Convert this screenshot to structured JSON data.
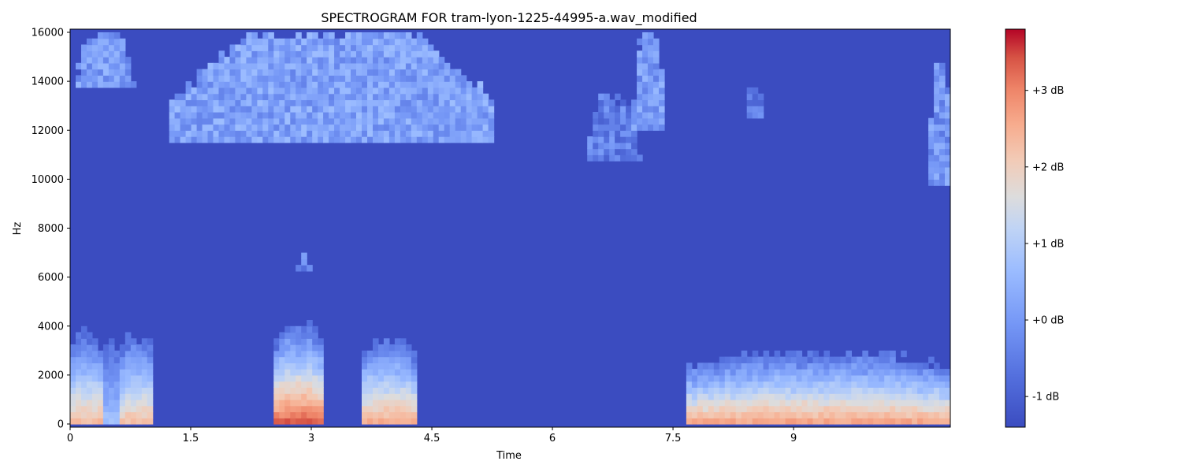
{
  "chart_data": {
    "type": "heatmap",
    "title": "SPECTROGRAM FOR tram-lyon-1225-44995-a.wav_modified",
    "xlabel": "Time",
    "ylabel": "Hz",
    "xlim": [
      0,
      10.95
    ],
    "ylim": [
      0,
      16000
    ],
    "x_ticks": [
      0,
      1.5,
      3,
      4.5,
      6,
      7.5,
      9
    ],
    "x_tick_labels": [
      "0",
      "1.5",
      "3",
      "4.5",
      "6",
      "7.5",
      "9"
    ],
    "y_ticks": [
      0,
      2000,
      4000,
      6000,
      8000,
      10000,
      12000,
      14000,
      16000
    ],
    "y_tick_labels": [
      "0",
      "2000",
      "4000",
      "6000",
      "8000",
      "10000",
      "12000",
      "14000",
      "16000"
    ],
    "colorbar": {
      "colormap": "coolwarm",
      "range_db": [
        -1.4,
        3.8
      ],
      "ticks": [
        -1,
        0,
        1,
        2,
        3
      ],
      "tick_labels": [
        "-1 dB",
        "+0 dB",
        "+1 dB",
        "+2 dB",
        "+3 dB"
      ]
    },
    "background_db": -1.3,
    "events": [
      {
        "name": "low-band-burst-1",
        "t_start": 0.0,
        "t_end": 0.42,
        "f_max": 3700,
        "peak_db": 2.6
      },
      {
        "name": "low-band-burst-1b",
        "t_start": 0.42,
        "t_end": 0.62,
        "f_max": 3400,
        "peak_db": 1.0
      },
      {
        "name": "low-band-burst-2",
        "t_start": 0.62,
        "t_end": 1.05,
        "f_max": 3600,
        "peak_db": 2.5
      },
      {
        "name": "low-band-burst-3",
        "t_start": 2.55,
        "t_end": 3.15,
        "f_max": 4000,
        "peak_db": 3.6
      },
      {
        "name": "low-band-burst-4",
        "t_start": 3.6,
        "t_end": 4.3,
        "f_max": 3500,
        "peak_db": 2.8
      },
      {
        "name": "low-band-sustained",
        "t_start": 7.65,
        "t_end": 10.95,
        "f_max": 2900,
        "peak_db": 2.9
      },
      {
        "name": "mid-band-blip",
        "t_start": 2.82,
        "t_end": 3.0,
        "f_min": 6200,
        "f_max": 7200,
        "peak_db": 0.3
      },
      {
        "name": "high-band-noise-1",
        "t_start": 0.0,
        "t_end": 0.85,
        "f_min": 13800,
        "f_max": 16000,
        "peak_db": 0.6
      },
      {
        "name": "high-band-noise-2",
        "t_start": 1.2,
        "t_end": 5.3,
        "f_min": 11400,
        "f_max": 16000,
        "peak_db": 0.7
      },
      {
        "name": "high-band-noise-3",
        "t_start": 6.4,
        "t_end": 7.1,
        "f_min": 10800,
        "f_max": 13200,
        "peak_db": 0.1
      },
      {
        "name": "high-band-noise-4",
        "t_start": 7.0,
        "t_end": 7.4,
        "f_min": 12000,
        "f_max": 16000,
        "peak_db": 0.6
      },
      {
        "name": "high-band-noise-5",
        "t_start": 8.35,
        "t_end": 8.65,
        "f_min": 12600,
        "f_max": 13800,
        "peak_db": 0.0
      },
      {
        "name": "high-band-noise-6",
        "t_start": 10.7,
        "t_end": 10.95,
        "f_min": 9800,
        "f_max": 14800,
        "peak_db": 0.5
      }
    ]
  }
}
